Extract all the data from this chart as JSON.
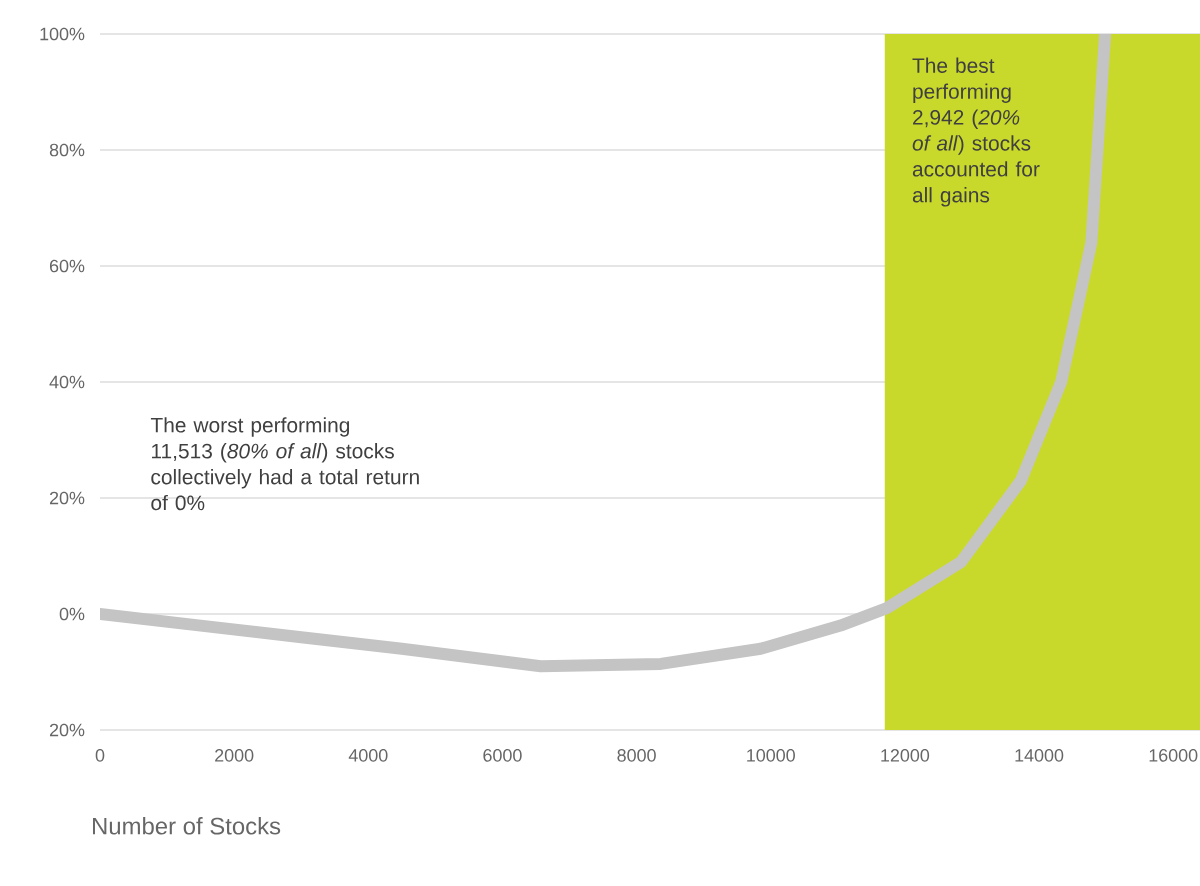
{
  "chart_data": {
    "type": "line",
    "xlabel": "Number of Stocks",
    "x": [
      0,
      1500,
      3000,
      4500,
      6570,
      8360,
      9850,
      11040,
      11730,
      12840,
      13730,
      14330,
      14780,
      14985
    ],
    "series": [
      {
        "color": "#c4c4c4",
        "values": [
          0,
          -2,
          -4,
          -6,
          -9,
          -8.6,
          -6,
          -2,
          1,
          9,
          23,
          40,
          64,
          100
        ]
      }
    ],
    "xlim": [
      0,
      16400
    ],
    "ylim": [
      -20,
      100
    ],
    "xticks": [
      0,
      2000,
      4000,
      6000,
      8000,
      10000,
      12000,
      14000,
      16000
    ],
    "yticks": [
      {
        "value": -20,
        "label": "20%"
      },
      {
        "value": 0,
        "label": "0%"
      },
      {
        "value": 20,
        "label": "20%"
      },
      {
        "value": 40,
        "label": "40%"
      },
      {
        "value": 60,
        "label": "60%"
      },
      {
        "value": 80,
        "label": "80%"
      },
      {
        "value": 100,
        "label": "100%"
      }
    ],
    "grid": "y",
    "marker": "none",
    "line_style": "solid",
    "bands": [
      {
        "axis": "x",
        "from": 11700,
        "to": 16400,
        "color": "#c8d92b"
      }
    ],
    "annotations": [
      "The worst performing 11,513 (*80% of all*) stocks collectively had a total return of 0%",
      "The best performing 2,942 (*20% of all*) stocks accounted for all gains"
    ]
  }
}
